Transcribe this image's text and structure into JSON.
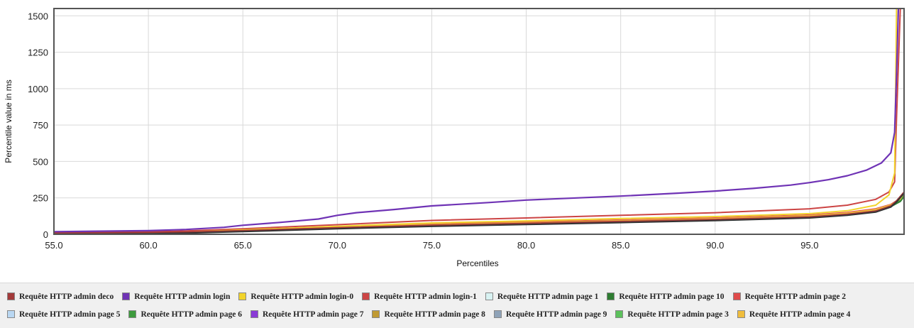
{
  "chart_data": {
    "type": "line",
    "xlabel": "Percentiles",
    "ylabel": "Percentile value in ms",
    "xlim": [
      55,
      100
    ],
    "ylim": [
      0,
      1550
    ],
    "x_ticks": [
      "55.0",
      "60.0",
      "65.0",
      "70.0",
      "75.0",
      "80.0",
      "85.0",
      "90.0",
      "95.0"
    ],
    "y_ticks": [
      "0",
      "250",
      "500",
      "750",
      "1000",
      "1250",
      "1500"
    ],
    "grid": true,
    "legend_position": "bottom",
    "series": [
      {
        "name": "Requête HTTP admin deco",
        "color": "#a33a3a",
        "x": [
          55,
          60,
          62,
          65,
          70,
          75,
          80,
          85,
          90,
          95,
          97,
          98.5,
          99.3,
          99.6,
          99.8,
          100
        ],
        "y": [
          8,
          12,
          16,
          26,
          46,
          62,
          75,
          88,
          102,
          120,
          138,
          160,
          195,
          230,
          260,
          290
        ]
      },
      {
        "name": "Requête HTTP admin login",
        "color": "#6f33b5",
        "x": [
          55,
          60,
          62,
          64,
          65,
          67,
          69,
          70,
          71,
          73,
          75,
          78,
          80,
          85,
          88,
          90,
          92,
          94,
          95,
          96,
          97,
          98,
          98.8,
          99.3,
          99.5,
          99.6,
          99.7
        ],
        "y": [
          18,
          25,
          33,
          48,
          62,
          82,
          105,
          130,
          148,
          170,
          195,
          218,
          235,
          262,
          282,
          297,
          315,
          338,
          355,
          375,
          402,
          440,
          490,
          560,
          700,
          1100,
          1550
        ]
      },
      {
        "name": "Requête HTTP admin login-0",
        "color": "#f2d42b",
        "x": [
          55,
          60,
          62,
          65,
          70,
          75,
          80,
          85,
          90,
          95,
          97,
          98.5,
          99.2,
          99.5,
          99.6
        ],
        "y": [
          6,
          10,
          15,
          30,
          55,
          78,
          92,
          108,
          122,
          142,
          162,
          200,
          270,
          420,
          1550
        ]
      },
      {
        "name": "Requête HTTP admin login-1",
        "color": "#cc4444",
        "x": [
          55,
          60,
          62,
          65,
          70,
          75,
          80,
          85,
          90,
          95,
          97,
          98.5,
          99.2,
          99.5,
          99.6,
          99.8,
          100
        ],
        "y": [
          12,
          17,
          23,
          38,
          66,
          95,
          112,
          130,
          148,
          175,
          200,
          240,
          290,
          360,
          800,
          1550,
          1550
        ]
      },
      {
        "name": "Requête HTTP admin page 1",
        "color": "#d8f2f2",
        "x": [
          55,
          60,
          62,
          65,
          70,
          75,
          80,
          85,
          90,
          95,
          97,
          98.5,
          99.3,
          99.8,
          100
        ],
        "y": [
          5,
          8,
          12,
          22,
          42,
          58,
          70,
          82,
          96,
          115,
          130,
          155,
          185,
          230,
          280
        ]
      },
      {
        "name": "Requête HTTP admin page 10",
        "color": "#2e7d32",
        "x": [
          55,
          60,
          62,
          65,
          70,
          75,
          80,
          85,
          90,
          95,
          97,
          98.5,
          99.3,
          99.8,
          100
        ],
        "y": [
          4,
          7,
          11,
          22,
          42,
          60,
          72,
          85,
          98,
          118,
          135,
          160,
          190,
          225,
          260
        ]
      },
      {
        "name": "Requête HTTP admin page 2",
        "color": "#e04b4b",
        "x": [
          55,
          60,
          62,
          65,
          70,
          75,
          80,
          85,
          90,
          95,
          97,
          98.5,
          99.3,
          99.8,
          100
        ],
        "y": [
          6,
          10,
          14,
          28,
          52,
          70,
          84,
          98,
          112,
          132,
          150,
          175,
          205,
          245,
          290
        ]
      },
      {
        "name": "Requête HTTP admin page 5",
        "color": "#b9d7f2",
        "x": [
          55,
          60,
          62,
          65,
          70,
          75,
          80,
          85,
          90,
          95,
          97,
          98.5,
          99.3,
          99.8,
          100
        ],
        "y": [
          5,
          9,
          13,
          24,
          46,
          63,
          76,
          90,
          104,
          124,
          140,
          165,
          198,
          240,
          285
        ]
      },
      {
        "name": "Requête HTTP admin page 6",
        "color": "#3d9b3d",
        "x": [
          55,
          60,
          62,
          65,
          70,
          75,
          80,
          85,
          90,
          95,
          97,
          98.5,
          99.3,
          99.8,
          100
        ],
        "y": [
          5,
          8,
          12,
          24,
          44,
          61,
          74,
          87,
          100,
          120,
          137,
          162,
          195,
          235,
          275
        ]
      },
      {
        "name": "Requête HTTP admin page 7",
        "color": "#8a3bd6",
        "x": [
          55,
          60,
          62,
          65,
          70,
          75,
          80,
          85,
          90,
          95,
          97,
          98.5,
          99.3,
          99.8,
          100
        ],
        "y": [
          6,
          9,
          13,
          25,
          47,
          64,
          78,
          92,
          106,
          126,
          143,
          168,
          200,
          240,
          282
        ]
      },
      {
        "name": "Requête HTTP admin page 8",
        "color": "#c09a33",
        "x": [
          55,
          60,
          62,
          65,
          70,
          75,
          80,
          85,
          90,
          95,
          97,
          98.5,
          99.3,
          99.8,
          100
        ],
        "y": [
          6,
          10,
          14,
          27,
          50,
          67,
          80,
          94,
          108,
          128,
          146,
          170,
          202,
          242,
          285
        ]
      },
      {
        "name": "Requête HTTP admin page 9",
        "color": "#8fa3b8",
        "x": [
          55,
          60,
          62,
          65,
          70,
          75,
          80,
          85,
          90,
          95,
          97,
          98.5,
          99.3,
          99.8,
          100
        ],
        "y": [
          5,
          8,
          12,
          23,
          45,
          62,
          75,
          88,
          101,
          121,
          138,
          163,
          196,
          236,
          278
        ]
      },
      {
        "name": "Requête HTTP admin page 3",
        "color": "#5cc15c",
        "x": [
          55,
          60,
          62,
          65,
          70,
          75,
          80,
          85,
          90,
          95,
          97,
          98.5,
          99.3,
          99.8,
          100
        ],
        "y": [
          5,
          9,
          13,
          25,
          47,
          64,
          77,
          91,
          104,
          124,
          141,
          166,
          198,
          238,
          280
        ]
      },
      {
        "name": "Requête HTTP admin page 4",
        "color": "#f0bd3c",
        "x": [
          55,
          60,
          62,
          65,
          70,
          75,
          80,
          85,
          90,
          95,
          97,
          98.5,
          99.3,
          99.8,
          100
        ],
        "y": [
          6,
          10,
          14,
          27,
          49,
          66,
          79,
          93,
          107,
          127,
          145,
          170,
          202,
          243,
          288
        ]
      }
    ]
  },
  "legend": {
    "row1": [
      0,
      1,
      2,
      3,
      4,
      5,
      6
    ],
    "row2": [
      7,
      8,
      9,
      10,
      11,
      12,
      13
    ]
  }
}
